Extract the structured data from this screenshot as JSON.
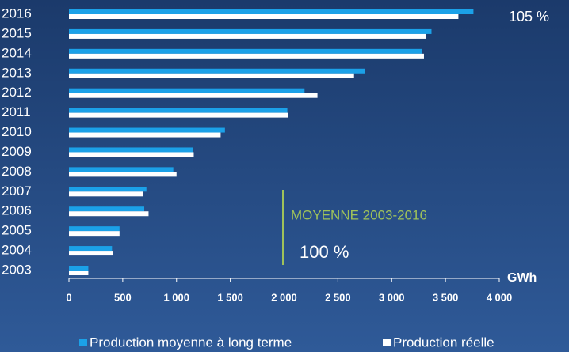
{
  "chart_data": {
    "type": "hbar",
    "categories": [
      "2016",
      "2015",
      "2014",
      "2013",
      "2012",
      "2011",
      "2010",
      "2009",
      "2008",
      "2007",
      "2006",
      "2005",
      "2004",
      "2003"
    ],
    "series": [
      {
        "name": "Production moyenne à long terme",
        "color": "#1ba1e8",
        "values": [
          3760,
          3370,
          3280,
          2750,
          2190,
          2030,
          1450,
          1150,
          970,
          720,
          700,
          470,
          400,
          180
        ]
      },
      {
        "name": "Production réelle",
        "color": "#ffffff",
        "values": [
          3620,
          3320,
          3300,
          2650,
          2310,
          2040,
          1410,
          1160,
          1000,
          690,
          740,
          470,
          410,
          180
        ]
      }
    ],
    "xlim": [
      0,
      4000
    ],
    "xticks": [
      0,
      500,
      {
        "value": 1000,
        "label": "1 000"
      },
      {
        "value": 1500,
        "label": "1 500"
      },
      {
        "value": 2000,
        "label": "2 000"
      },
      {
        "value": 2500,
        "label": "2 500"
      },
      {
        "value": 3000,
        "label": "3 000"
      },
      {
        "value": 3500,
        "label": "3 500"
      },
      {
        "value": 4000,
        "label": "4 000"
      }
    ],
    "xlabel": "GWh",
    "annotations": [
      "105 %",
      "MOYENNE 2003-2016",
      "100 %"
    ]
  }
}
